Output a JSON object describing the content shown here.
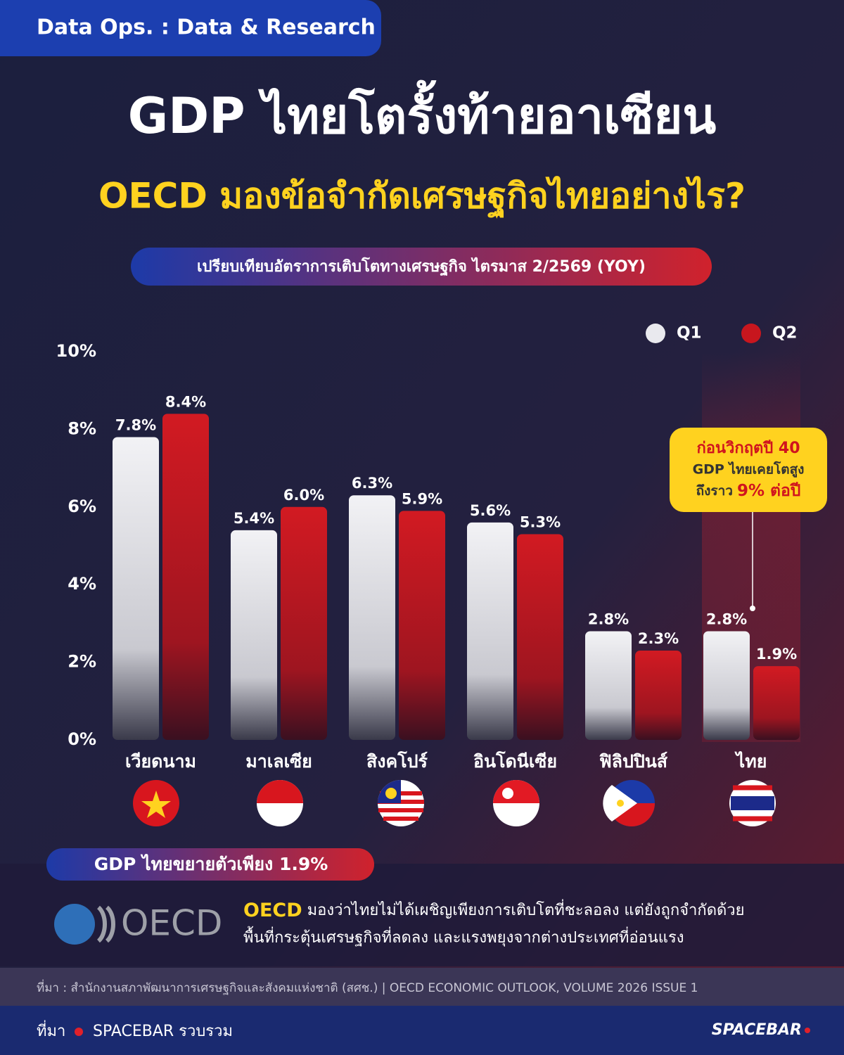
{
  "header": {
    "tag": "Data Ops.  : Data & Research",
    "title": "GDP ไทยโตรั้งท้ายอาเซียน",
    "subtitle": "OECD มองข้อจำกัดเศรษฐกิจไทยอย่างไร?"
  },
  "chart_data": {
    "type": "bar",
    "title": "เปรียบเทียบอัตราการเติบโตทางเศรษฐกิจ ไตรมาส 2/2569 (YOY)",
    "categories": [
      "เวียดนาม",
      "มาเลเซีย",
      "สิงคโปร์",
      "อินโดนีเซีย",
      "ฟิลิปปินส์",
      "ไทย"
    ],
    "series": [
      {
        "name": "Q1",
        "color": "#e9e9ee",
        "values": [
          7.8,
          5.4,
          6.3,
          5.6,
          2.8,
          2.8
        ],
        "value_labels": [
          "7.8%",
          "5.4%",
          "6.3%",
          "5.6%",
          "2.8%",
          "2.8%"
        ]
      },
      {
        "name": "Q2",
        "color": "#c8161e",
        "values": [
          8.4,
          6.0,
          5.9,
          5.3,
          2.3,
          1.9
        ],
        "value_labels": [
          "8.4%",
          "6.0%",
          "5.9%",
          "5.3%",
          "2.3%",
          "1.9%"
        ]
      }
    ],
    "ylim": [
      0,
      10
    ],
    "yticks": [
      {
        "value": 0,
        "label": "0%"
      },
      {
        "value": 2,
        "label": "2%"
      },
      {
        "value": 4,
        "label": "4%"
      },
      {
        "value": 6,
        "label": "6%"
      },
      {
        "value": 8,
        "label": "8%"
      },
      {
        "value": 10,
        "label": "10%"
      }
    ],
    "legend": "top-right",
    "annotation": {
      "line1": "ก่อนวิกฤตปี 40",
      "line2": "GDP ไทยเคยโตสูง",
      "line3a": "ถึงราว",
      "line3b": "9% ต่อปี"
    }
  },
  "summary": {
    "badge": "GDP ไทยขยายตัวเพียง 1.9%",
    "logo": "OECD",
    "lead": "OECD",
    "text1": " มองว่าไทยไม่ได้เผชิญเพียงการเติบโตที่ชะลอลง แต่ยังถูกจำกัดด้วย",
    "text2": "พื้นที่กระตุ้นเศรษฐกิจที่ลดลง และแรงพยุงจากต่างประเทศที่อ่อนแรง"
  },
  "footer": {
    "source": "ที่มา : สำนักงานสภาพัฒนาการเศรษฐกิจและสังคมแห่งชาติ (สศช.) | OECD ECONOMIC OUTLOOK, VOLUME 2026 ISSUE 1",
    "credit_label": "ที่มา",
    "credit": "SPACEBAR รวบรวม",
    "brand": "SPACEBAR"
  }
}
